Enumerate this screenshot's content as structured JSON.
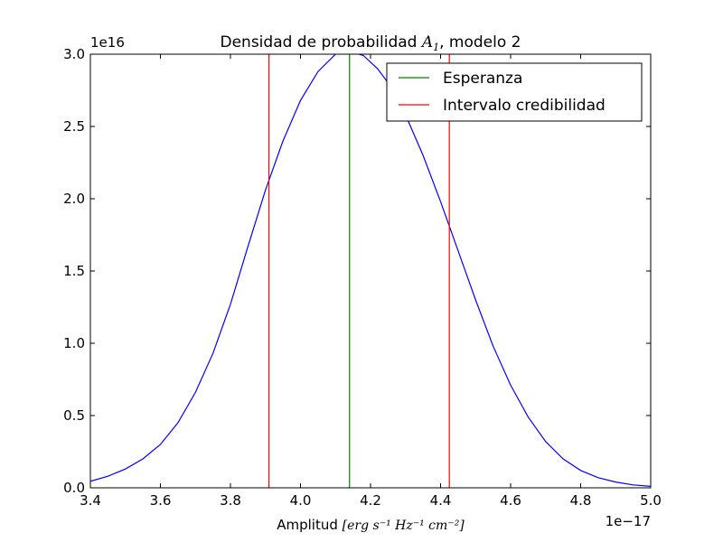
{
  "chart_data": {
    "type": "line",
    "title_prefix": "Densidad de probabilidad ",
    "title_math_var": "A",
    "title_math_sub": "1",
    "title_suffix": ", modelo 2",
    "xlabel_text": "Amplitud ",
    "xlabel_units": "[erg s⁻¹ Hz⁻¹ cm⁻²]",
    "x_offset_label": "1e−17",
    "y_offset_label": "1e16",
    "xlim": [
      3.4,
      5.0
    ],
    "ylim": [
      0.0,
      3.0
    ],
    "x_ticks": [
      "3.4",
      "3.6",
      "3.8",
      "4.0",
      "4.2",
      "4.4",
      "4.6",
      "4.8",
      "5.0"
    ],
    "y_ticks": [
      "0.0",
      "0.5",
      "1.0",
      "1.5",
      "2.0",
      "2.5",
      "3.0"
    ],
    "grid": false,
    "legend_position": "top-right",
    "legend": [
      {
        "label": "Esperanza",
        "color": "#008000"
      },
      {
        "label": "Intervalo credibilidad",
        "color": "#ff0000"
      }
    ],
    "series": [
      {
        "color": "#0000ff",
        "x": [
          3.4,
          3.45,
          3.5,
          3.55,
          3.6,
          3.65,
          3.7,
          3.75,
          3.8,
          3.85,
          3.9,
          3.95,
          4.0,
          4.05,
          4.1,
          4.14,
          4.18,
          4.22,
          4.26,
          4.3,
          4.35,
          4.4,
          4.45,
          4.5,
          4.55,
          4.6,
          4.65,
          4.7,
          4.75,
          4.8,
          4.85,
          4.9,
          4.95,
          5.0
        ],
        "y": [
          0.045,
          0.08,
          0.13,
          0.2,
          0.3,
          0.45,
          0.66,
          0.93,
          1.27,
          1.67,
          2.06,
          2.4,
          2.68,
          2.88,
          3.0,
          3.02,
          2.99,
          2.9,
          2.77,
          2.58,
          2.3,
          1.98,
          1.64,
          1.3,
          0.98,
          0.71,
          0.49,
          0.32,
          0.2,
          0.12,
          0.07,
          0.04,
          0.02,
          0.01
        ]
      }
    ],
    "vlines": [
      {
        "name": "Esperanza",
        "x": 4.14,
        "color": "#008000"
      },
      {
        "name": "Intervalo credibilidad",
        "x": 3.91,
        "color": "#ff0000"
      },
      {
        "name": "Intervalo credibilidad",
        "x": 4.425,
        "color": "#ff0000"
      }
    ]
  }
}
